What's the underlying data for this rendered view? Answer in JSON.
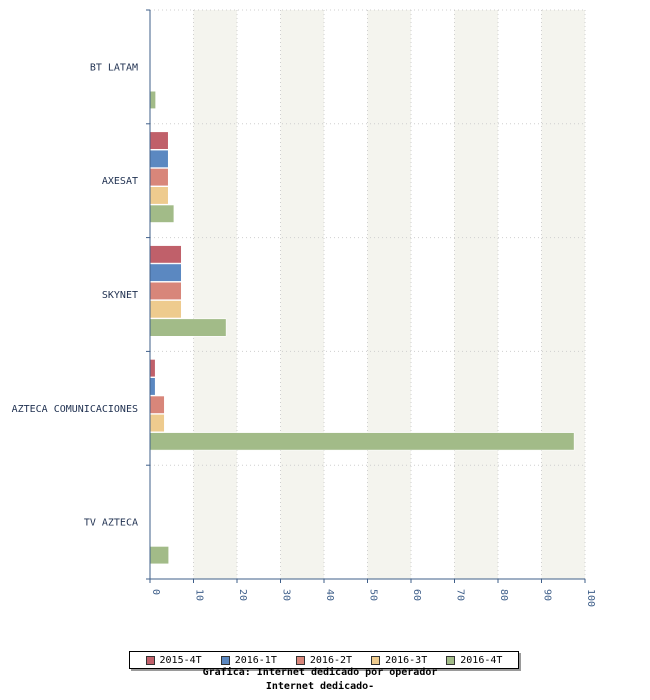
{
  "chart_data": {
    "type": "bar",
    "orientation": "horizontal",
    "categories": [
      "BT LATAM",
      "AXESAT",
      "SKYNET",
      "AZTECA COMUNICACIONES",
      "TV AZTECA"
    ],
    "series": [
      {
        "name": "2015-4T",
        "color": "#c0606a",
        "values": [
          0,
          4.2,
          7.2,
          1.2,
          0
        ]
      },
      {
        "name": "2016-1T",
        "color": "#5b88c1",
        "values": [
          0,
          4.2,
          7.2,
          1.2,
          0
        ]
      },
      {
        "name": "2016-2T",
        "color": "#d8867a",
        "values": [
          0,
          4.2,
          7.2,
          3.3,
          0
        ]
      },
      {
        "name": "2016-3T",
        "color": "#eecb8e",
        "values": [
          0,
          4.2,
          7.2,
          3.3,
          0
        ]
      },
      {
        "name": "2016-4T",
        "color": "#a2bb88",
        "values": [
          1.3,
          5.5,
          17.5,
          97.5,
          4.3
        ]
      }
    ],
    "xlim": [
      0,
      100
    ],
    "xticks": [
      "0",
      "10",
      "20",
      "30",
      "40",
      "50",
      "60",
      "70",
      "80",
      "90",
      "100"
    ],
    "grid": true,
    "legend_position": "bottom"
  },
  "caption": {
    "line1": "Grafica: Internet dedicado por operador",
    "line2": "Internet dedicado-"
  },
  "colors": {
    "axis": "#3f5f8a",
    "band": "#f4f4ee",
    "grid": "#cfcfcf"
  }
}
